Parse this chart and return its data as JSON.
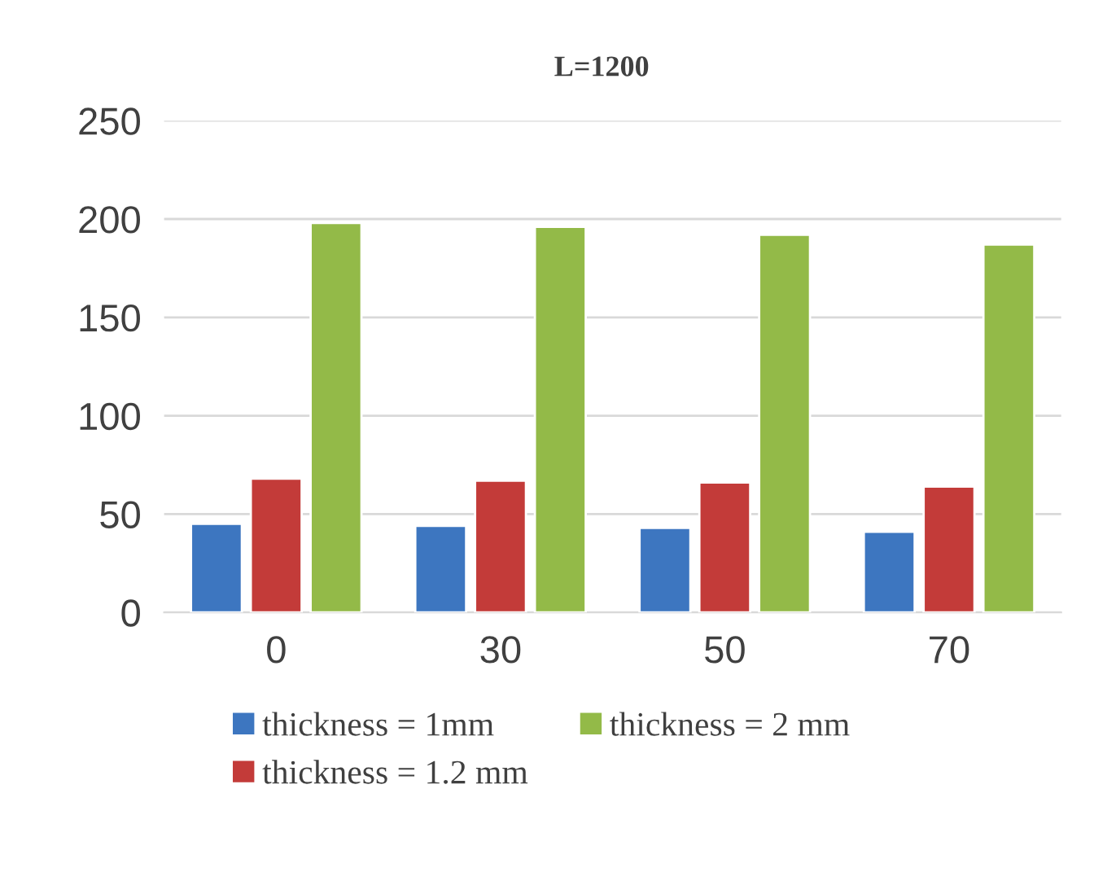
{
  "chart_data": {
    "type": "bar",
    "title": "L=1200",
    "categories": [
      "0",
      "30",
      "50",
      "70"
    ],
    "series": [
      {
        "name": "thickness = 1mm",
        "color": "#3d76c0",
        "values": [
          45,
          44,
          43,
          41
        ]
      },
      {
        "name": "thickness = 1.2 mm",
        "color": "#c33b39",
        "values": [
          68,
          67,
          66,
          64
        ]
      },
      {
        "name": "thickness = 2 mm",
        "color": "#93ba48",
        "values": [
          198,
          196,
          192,
          187
        ]
      }
    ],
    "ylim": [
      0,
      250
    ],
    "yticks": [
      0,
      50,
      100,
      150,
      200,
      250
    ],
    "grid": "y",
    "legend": "bottom"
  }
}
